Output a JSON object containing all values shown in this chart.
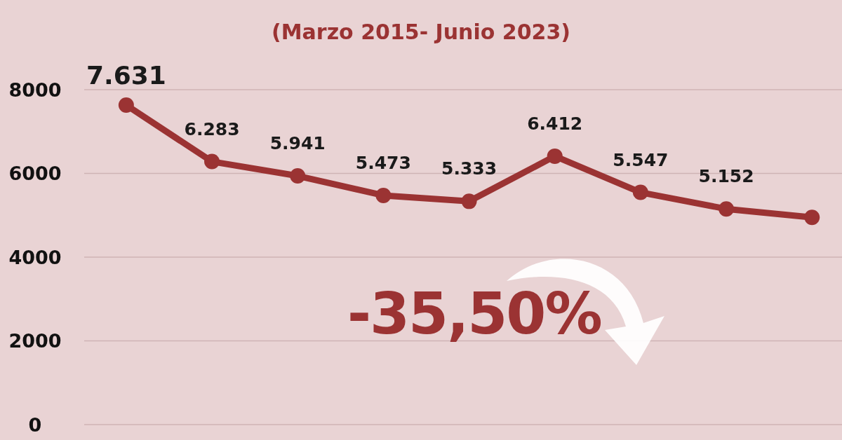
{
  "chart_data": {
    "type": "line",
    "subtitle": "(Marzo 2015- Junio 2023)",
    "categories": [
      null,
      null,
      null,
      null,
      null,
      null,
      null,
      null,
      null
    ],
    "series": [
      {
        "color": "#9b3333",
        "values": [
          7631,
          6283,
          5941,
          5473,
          5333,
          6412,
          5547,
          5152,
          4950
        ]
      }
    ],
    "value_labels": [
      "7.631",
      "6.283",
      "5.941",
      "5.473",
      "5.333",
      "6.412",
      "5.547",
      "5.152",
      null
    ],
    "ylim": [
      0,
      8000
    ],
    "yticks": [
      0,
      2000,
      4000,
      6000,
      8000
    ],
    "grid": "y",
    "marker": "circle",
    "line_style": "solid",
    "tick_labels": "y",
    "annotations": [
      "-35,50%"
    ]
  }
}
